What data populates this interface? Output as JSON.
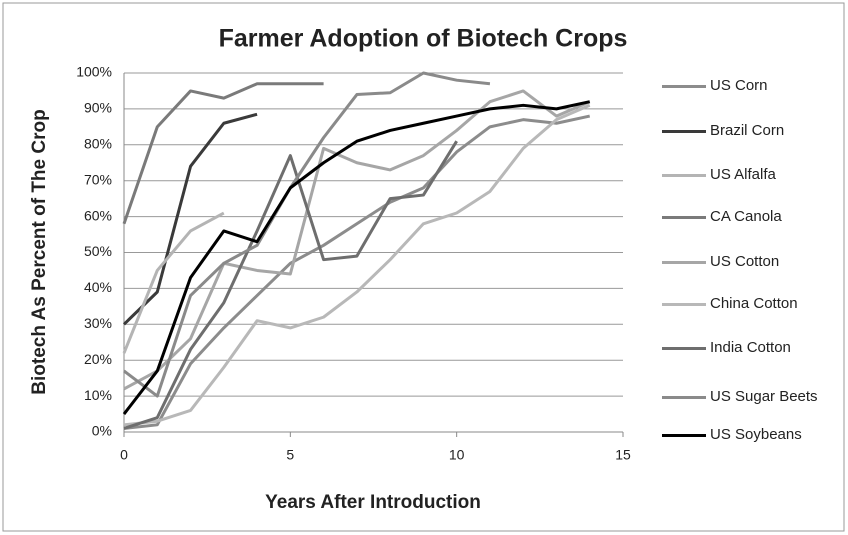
{
  "chart_data": {
    "type": "line",
    "title": "Farmer Adoption of Biotech Crops",
    "x_label": "Years After Introduction",
    "y_label": "Biotech As Percent of The Crop",
    "xlim": [
      0,
      15
    ],
    "xticks": [
      0,
      5,
      10,
      15
    ],
    "ylim": [
      0,
      100
    ],
    "yticks": [
      {
        "value": 0,
        "label": "0%"
      },
      {
        "value": 10,
        "label": "10%"
      },
      {
        "value": 20,
        "label": "20%"
      },
      {
        "value": 30,
        "label": "30%"
      },
      {
        "value": 40,
        "label": "40%"
      },
      {
        "value": 50,
        "label": "50%"
      },
      {
        "value": 60,
        "label": "60%"
      },
      {
        "value": 70,
        "label": "70%"
      },
      {
        "value": 80,
        "label": "80%"
      },
      {
        "value": 90,
        "label": "90%"
      },
      {
        "value": 100,
        "label": "100%"
      }
    ],
    "grid": true,
    "legend": "right",
    "x": [
      0,
      1,
      2,
      3,
      4,
      5,
      6,
      7,
      8,
      9,
      10,
      11,
      12,
      13,
      14
    ],
    "series": [
      {
        "name": "US Corn",
        "color": "#8c8c8c",
        "values": [
          1,
          2,
          19,
          29,
          38,
          47,
          52,
          58,
          64,
          68,
          78,
          85,
          87,
          86,
          88
        ]
      },
      {
        "name": "Brazil Corn",
        "color": "#3a3a3a",
        "values": [
          30,
          39,
          74,
          86,
          88.5,
          null,
          null,
          null,
          null,
          null,
          null,
          null,
          null,
          null,
          null
        ]
      },
      {
        "name": "US Alfalfa",
        "color": "#b4b4b4",
        "values": [
          22,
          45,
          56,
          61,
          null,
          null,
          null,
          null,
          null,
          null,
          null,
          null,
          null,
          null,
          null
        ]
      },
      {
        "name": "CA Canola",
        "color": "#7a7a7a",
        "values": [
          58,
          85,
          95,
          93,
          97,
          97,
          97,
          null,
          null,
          null,
          null,
          null,
          null,
          null,
          null
        ]
      },
      {
        "name": "US Cotton",
        "color": "#a6a6a6",
        "values": [
          12,
          17,
          26,
          47,
          45,
          44,
          79,
          75,
          73,
          77,
          84,
          92,
          95,
          88,
          92
        ]
      },
      {
        "name": "China Cotton",
        "color": "#b8b8b8",
        "values": [
          2,
          3,
          6,
          18,
          31,
          29,
          32,
          39,
          48,
          58,
          61,
          67,
          79,
          87,
          91
        ]
      },
      {
        "name": "India Cotton",
        "color": "#6e6e6e",
        "values": [
          1,
          4,
          23,
          36,
          56,
          77,
          48,
          49,
          65,
          66,
          81,
          null,
          null,
          null,
          null
        ]
      },
      {
        "name": "US Sugar Beets",
        "color": "#8a8a8a",
        "values": [
          17,
          10,
          38,
          47,
          52,
          68,
          82,
          94,
          94.5,
          100,
          98,
          97,
          null,
          null,
          null
        ]
      },
      {
        "name": "US Soybeans",
        "color": "#000000",
        "values": [
          5,
          17,
          43,
          56,
          53,
          68,
          75,
          81,
          84,
          86,
          88,
          90,
          91,
          90,
          92
        ]
      }
    ]
  }
}
